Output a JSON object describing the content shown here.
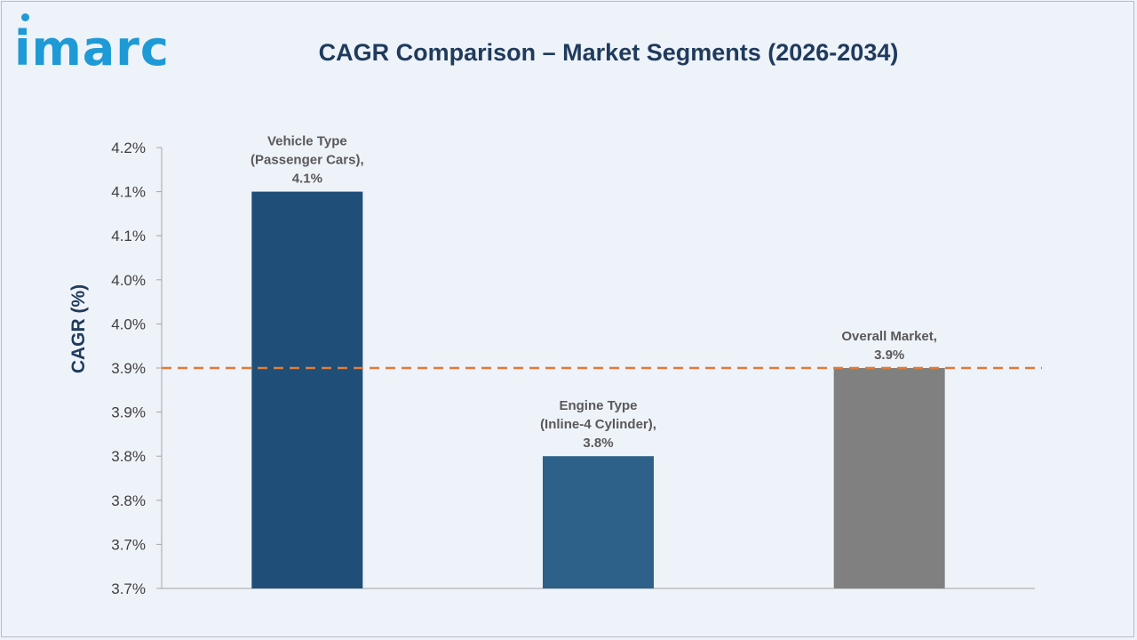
{
  "logo_text": "imarc",
  "chart_data": {
    "type": "bar",
    "title": "CAGR Comparison – Market Segments (2026-2034)",
    "xlabel": "",
    "ylabel": "CAGR (%)",
    "ylim": [
      3.65,
      4.15
    ],
    "y_tick_values": [
      3.65,
      3.7,
      3.75,
      3.8,
      3.85,
      3.9,
      3.95,
      4.0,
      4.05,
      4.1,
      4.15
    ],
    "y_tick_labels": [
      "3.7%",
      "3.7%",
      "3.8%",
      "3.8%",
      "3.9%",
      "3.9%",
      "4.0%",
      "4.0%",
      "4.1%",
      "4.1%",
      "4.2%"
    ],
    "categories": [
      "Vehicle Type (Passenger Cars)",
      "Engine Type (Inline-4 Cylinder)",
      "Overall Market"
    ],
    "values": [
      4.1,
      3.8,
      3.9
    ],
    "data_labels": [
      [
        "Vehicle Type",
        "(Passenger Cars),",
        "4.1%"
      ],
      [
        "Engine Type",
        "(Inline-4 Cylinder),",
        "3.8%"
      ],
      [
        "Overall Market,",
        "3.9%"
      ]
    ],
    "bar_colors": [
      "#1f4e79",
      "#2e6189",
      "#808080"
    ],
    "reference_line": {
      "value": 3.9,
      "color": "#e07b39",
      "style": "dashed"
    },
    "grid": false
  }
}
